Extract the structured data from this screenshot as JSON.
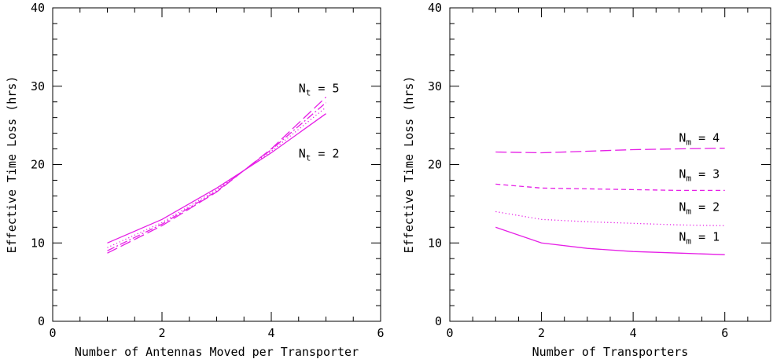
{
  "colors": {
    "series": "#e61ee6",
    "axis": "#000000"
  },
  "chart_data": [
    {
      "type": "line",
      "xlabel": "Number of Antennas Moved per Transporter",
      "ylabel": "Effective Time Loss (hrs)",
      "xlim": [
        0,
        6
      ],
      "ylim": [
        0,
        40
      ],
      "xticks": [
        0,
        2,
        4,
        6
      ],
      "yticks": [
        0,
        10,
        20,
        30,
        40
      ],
      "x": [
        1,
        2,
        3,
        4,
        5
      ],
      "series": [
        {
          "name": "",
          "dash": "solid",
          "values": [
            10.0,
            13.0,
            17.0,
            21.5,
            26.5
          ]
        },
        {
          "name": "",
          "dash": "dotted",
          "values": [
            9.4,
            12.6,
            16.8,
            21.7,
            27.3
          ]
        },
        {
          "name": "",
          "dash": "dashdot",
          "values": [
            9.0,
            12.4,
            16.6,
            21.9,
            27.9
          ]
        },
        {
          "name": "",
          "dash": "longdash",
          "values": [
            8.7,
            12.2,
            16.5,
            22.0,
            28.6
          ]
        }
      ],
      "annotations": [
        {
          "base": "N",
          "sub": "t",
          "rest": "= 5",
          "x": 4.5,
          "y": 29.2
        },
        {
          "base": "N",
          "sub": "t",
          "rest": "= 2",
          "x": 4.5,
          "y": 20.9
        }
      ]
    },
    {
      "type": "line",
      "xlabel": "Number of Transporters",
      "ylabel": "Effective Time Loss (hrs)",
      "xlim": [
        0,
        7
      ],
      "ylim": [
        0,
        40
      ],
      "xticks": [
        0,
        2,
        4,
        6
      ],
      "yticks": [
        0,
        10,
        20,
        30,
        40
      ],
      "x": [
        1,
        2,
        3,
        4,
        5,
        6
      ],
      "series": [
        {
          "name": "",
          "dash": "solid",
          "values": [
            12.0,
            10.0,
            9.3,
            8.9,
            8.7,
            8.5
          ]
        },
        {
          "name": "",
          "dash": "dotted",
          "values": [
            14.0,
            13.0,
            12.7,
            12.5,
            12.3,
            12.2
          ]
        },
        {
          "name": "",
          "dash": "shortdash",
          "values": [
            17.5,
            17.0,
            16.9,
            16.8,
            16.7,
            16.7
          ]
        },
        {
          "name": "",
          "dash": "longdash",
          "values": [
            21.6,
            21.5,
            21.7,
            21.9,
            22.0,
            22.1
          ]
        }
      ],
      "annotations": [
        {
          "base": "N",
          "sub": "m",
          "rest": "= 4",
          "x": 5.0,
          "y": 22.9
        },
        {
          "base": "N",
          "sub": "m",
          "rest": "= 3",
          "x": 5.0,
          "y": 18.3
        },
        {
          "base": "N",
          "sub": "m",
          "rest": "= 2",
          "x": 5.0,
          "y": 14.1
        },
        {
          "base": "N",
          "sub": "m",
          "rest": "= 1",
          "x": 5.0,
          "y": 10.3
        }
      ]
    }
  ]
}
